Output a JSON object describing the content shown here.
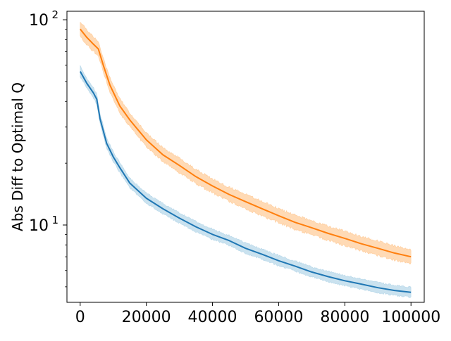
{
  "chart_data": {
    "type": "line",
    "title": "",
    "xlabel": "",
    "ylabel": "Abs Diff to Optimal Q",
    "yscale": "log",
    "xlim": [
      -4000,
      104000
    ],
    "ylim": [
      4.2,
      110
    ],
    "x_ticks": [
      {
        "value": 0,
        "label": "0"
      },
      {
        "value": 20000,
        "label": "20000"
      },
      {
        "value": 40000,
        "label": "40000"
      },
      {
        "value": 60000,
        "label": "60000"
      },
      {
        "value": 80000,
        "label": "80000"
      },
      {
        "value": 100000,
        "label": "100000"
      }
    ],
    "y_major_ticks": [
      {
        "value": 10,
        "base": "10",
        "exp": "1"
      },
      {
        "value": 100,
        "base": "10",
        "exp": "2"
      }
    ],
    "y_minor_ticks": [
      5,
      6,
      7,
      8,
      9,
      20,
      30,
      40,
      50,
      60,
      70,
      80,
      90
    ],
    "grid": false,
    "legend": "none",
    "series": [
      {
        "color": "#1f77b4",
        "band_color": "#9ecae1",
        "x": [
          0,
          2000,
          4000,
          5000,
          6000,
          8000,
          10000,
          12000,
          15000,
          20000,
          25000,
          30000,
          35000,
          40000,
          45000,
          50000,
          55000,
          60000,
          65000,
          70000,
          75000,
          80000,
          85000,
          90000,
          95000,
          100000
        ],
        "y": [
          56,
          49,
          44,
          41,
          33,
          25,
          21.5,
          19,
          16,
          13.5,
          12,
          10.8,
          9.8,
          9.0,
          8.4,
          7.7,
          7.2,
          6.7,
          6.3,
          5.9,
          5.6,
          5.35,
          5.15,
          4.95,
          4.8,
          4.7
        ],
        "band": 0.05
      },
      {
        "color": "#ff7f0e",
        "band_color": "#ffbb78",
        "x": [
          0,
          2000,
          4000,
          5500,
          7000,
          9000,
          12000,
          15000,
          20000,
          25000,
          30000,
          35000,
          40000,
          45000,
          50000,
          55000,
          60000,
          65000,
          70000,
          75000,
          80000,
          85000,
          90000,
          95000,
          100000
        ],
        "y": [
          90,
          82,
          76,
          72,
          60,
          48,
          38,
          32.5,
          26,
          22,
          19.5,
          17.2,
          15.5,
          14.1,
          13,
          12,
          11.1,
          10.3,
          9.7,
          9.1,
          8.6,
          8.1,
          7.7,
          7.3,
          7.0
        ],
        "band": 0.07
      }
    ]
  }
}
